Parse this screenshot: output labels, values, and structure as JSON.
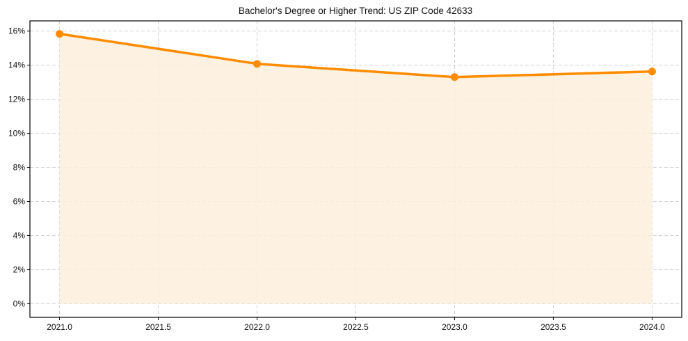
{
  "chart_data": {
    "type": "line",
    "title": "Bachelor's Degree or Higher Trend: US ZIP Code 42633",
    "xlabel": "",
    "ylabel": "",
    "x": [
      2021,
      2022,
      2023,
      2024
    ],
    "series": [
      {
        "name": "Bachelor's Degree or Higher (%)",
        "values": [
          15.84,
          14.08,
          13.3,
          13.63
        ],
        "color": "#ff8c00",
        "fill_color": "#fdeedd"
      }
    ],
    "xlim": [
      2020.85,
      2024.15
    ],
    "ylim": [
      -0.8,
      16.6
    ],
    "x_ticks": [
      2021.0,
      2021.5,
      2022.0,
      2022.5,
      2023.0,
      2023.5,
      2024.0
    ],
    "x_tick_labels": [
      "2021.0",
      "2021.5",
      "2022.0",
      "2022.5",
      "2023.0",
      "2023.5",
      "2024.0"
    ],
    "y_ticks": [
      0,
      2,
      4,
      6,
      8,
      10,
      12,
      14,
      16
    ],
    "y_tick_labels": [
      "0%",
      "2%",
      "4%",
      "6%",
      "8%",
      "10%",
      "12%",
      "14%",
      "16%"
    ],
    "grid": true,
    "legend": null
  }
}
